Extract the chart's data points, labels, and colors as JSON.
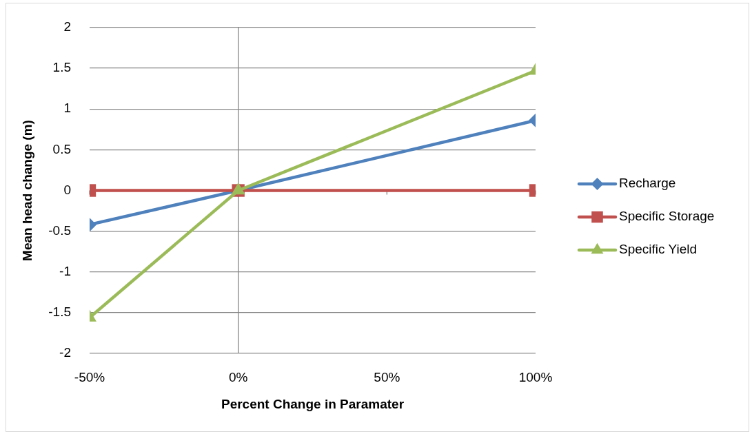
{
  "chart_data": {
    "type": "line",
    "xlabel": "Percent Change in Paramater",
    "ylabel": "Mean head change (m)",
    "x": [
      -50,
      0,
      100
    ],
    "xlim": [
      -50,
      100
    ],
    "xticks": [
      {
        "value": -50,
        "label": "-50%"
      },
      {
        "value": 0,
        "label": "0%"
      },
      {
        "value": 50,
        "label": "50%"
      },
      {
        "value": 100,
        "label": "100%"
      }
    ],
    "ylim": [
      -2,
      2
    ],
    "yticks": [
      -2,
      -1.5,
      -1,
      -0.5,
      0,
      0.5,
      1,
      1.5,
      2
    ],
    "grid": "y",
    "legend": "right",
    "line_style": "solid",
    "ref_lines": [
      {
        "axis": "x",
        "value": 0,
        "color": "#868686"
      }
    ],
    "series": [
      {
        "name": "Recharge",
        "color": "#4f81bd",
        "marker": "diamond",
        "values": [
          -0.42,
          0,
          0.86
        ]
      },
      {
        "name": "Specific Storage",
        "color": "#c0504d",
        "marker": "square",
        "values": [
          0,
          0,
          0
        ]
      },
      {
        "name": "Specific Yield",
        "color": "#9bbb59",
        "marker": "triangle",
        "values": [
          -1.56,
          0,
          1.47
        ]
      }
    ]
  }
}
